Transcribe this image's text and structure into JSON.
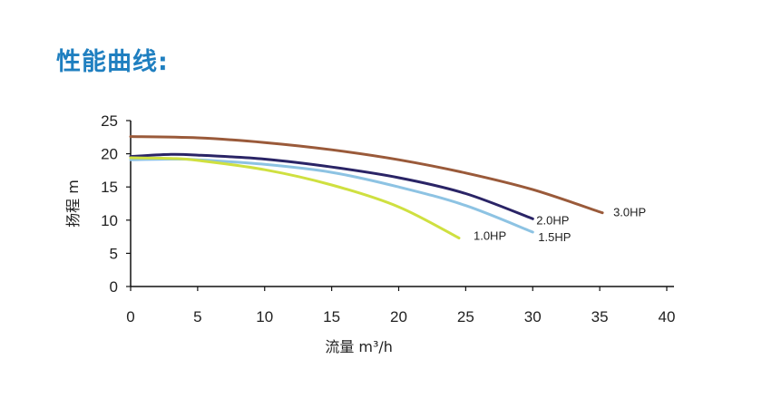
{
  "page": {
    "title": "性能曲线:"
  },
  "chart_data": {
    "type": "line",
    "xlabel": "流量 m³/h",
    "ylabel": "扬程 m",
    "xlim": [
      0,
      40
    ],
    "ylim": [
      0,
      25
    ],
    "xticks": [
      0,
      5,
      10,
      15,
      20,
      25,
      30,
      35,
      40
    ],
    "yticks": [
      0,
      5,
      10,
      15,
      20,
      25
    ],
    "grid": false,
    "series": [
      {
        "name": "3.0HP",
        "color": "#9a5a3a",
        "points": [
          [
            0,
            22.6
          ],
          [
            5,
            22.4
          ],
          [
            10,
            21.7
          ],
          [
            15,
            20.6
          ],
          [
            20,
            19.1
          ],
          [
            25,
            17.1
          ],
          [
            30,
            14.6
          ],
          [
            35.2,
            11.1
          ]
        ]
      },
      {
        "name": "2.0HP",
        "color": "#2a2466",
        "points": [
          [
            0,
            19.6
          ],
          [
            3,
            19.9
          ],
          [
            5,
            19.8
          ],
          [
            10,
            19.2
          ],
          [
            15,
            18.0
          ],
          [
            20,
            16.4
          ],
          [
            25,
            14.0
          ],
          [
            30,
            10.2
          ]
        ]
      },
      {
        "name": "1.5HP",
        "color": "#8dc3e3",
        "points": [
          [
            0,
            19.1
          ],
          [
            3,
            19.2
          ],
          [
            5,
            19.1
          ],
          [
            10,
            18.4
          ],
          [
            15,
            17.2
          ],
          [
            20,
            15.0
          ],
          [
            25,
            12.2
          ],
          [
            30,
            8.2
          ]
        ]
      },
      {
        "name": "1.0HP",
        "color": "#cfe040",
        "points": [
          [
            0,
            19.4
          ],
          [
            3,
            19.3
          ],
          [
            5,
            19.0
          ],
          [
            10,
            17.6
          ],
          [
            15,
            15.3
          ],
          [
            20,
            12.0
          ],
          [
            24.5,
            7.3
          ]
        ]
      }
    ]
  }
}
